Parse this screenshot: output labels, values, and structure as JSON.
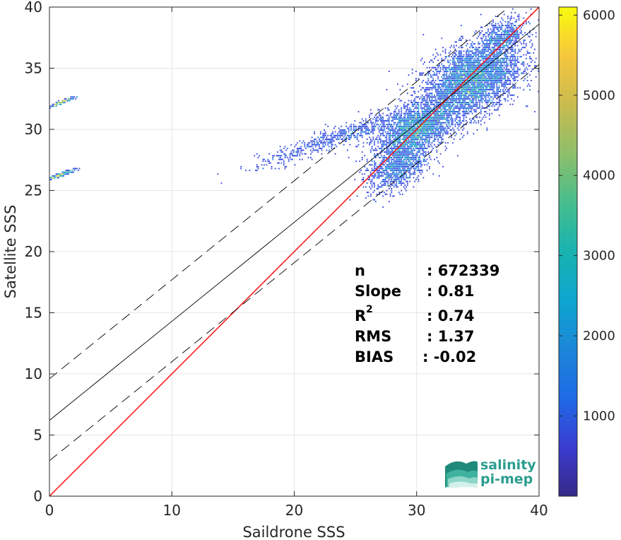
{
  "chart_data": {
    "type": "heatmap",
    "title": "",
    "xlabel": "Saildrone SSS",
    "ylabel": "Satellite SSS",
    "xlim": [
      0,
      40
    ],
    "ylim": [
      0,
      40
    ],
    "xticks": [
      0,
      10,
      20,
      30,
      40
    ],
    "yticks": [
      0,
      5,
      10,
      15,
      20,
      25,
      30,
      35,
      40
    ],
    "grid": true,
    "colorbar": {
      "range": [
        0,
        6100
      ],
      "ticks": [
        1000,
        2000,
        3000,
        4000,
        5000,
        6000
      ],
      "colormap": "parula"
    },
    "lines": [
      {
        "name": "1:1",
        "color": "#ff0000",
        "style": "solid",
        "x": [
          0,
          40
        ],
        "y": [
          0,
          40
        ]
      },
      {
        "name": "fit",
        "color": "#000000",
        "style": "solid",
        "x": [
          0,
          40
        ],
        "y": [
          6.2,
          38.6
        ]
      },
      {
        "name": "fit+2rms",
        "color": "#000000",
        "style": "dashed",
        "x": [
          0,
          40
        ],
        "y": [
          9.6,
          42.0
        ]
      },
      {
        "name": "fit-2rms",
        "color": "#000000",
        "style": "dashed",
        "x": [
          0,
          40
        ],
        "y": [
          2.9,
          35.3
        ]
      }
    ],
    "density_clusters": [
      {
        "x": 34.5,
        "y": 34.0,
        "sx": 2.0,
        "sy": 2.4,
        "weight": 0.45
      },
      {
        "x": 30.0,
        "y": 30.0,
        "sx": 1.6,
        "sy": 1.5,
        "weight": 0.25
      },
      {
        "x": 28.5,
        "y": 27.0,
        "sx": 1.2,
        "sy": 1.6,
        "weight": 0.12
      },
      {
        "x": 24.0,
        "y": 29.5,
        "sx": 3.5,
        "sy": 0.7,
        "weight": 0.08
      },
      {
        "x": 37.0,
        "y": 37.5,
        "sx": 1.0,
        "sy": 1.2,
        "weight": 0.06
      },
      {
        "x": 1.0,
        "y": 32.2,
        "sx": 0.5,
        "sy": 0.1,
        "weight": 0.02
      },
      {
        "x": 1.0,
        "y": 26.3,
        "sx": 0.6,
        "sy": 0.1,
        "weight": 0.02
      }
    ],
    "stats": [
      {
        "label": "n",
        "value": ": 672339"
      },
      {
        "label": "Slope",
        "value": ": 0.81"
      },
      {
        "label": "R",
        "sup": "2",
        "value": ": 0.74"
      },
      {
        "label": "RMS",
        "value": ": 1.37"
      },
      {
        "label": "BIAS",
        "value": ": -0.02"
      }
    ]
  },
  "logo": {
    "line1": "salinity",
    "line2": "pi-mep",
    "color": "#2a9d8f"
  }
}
